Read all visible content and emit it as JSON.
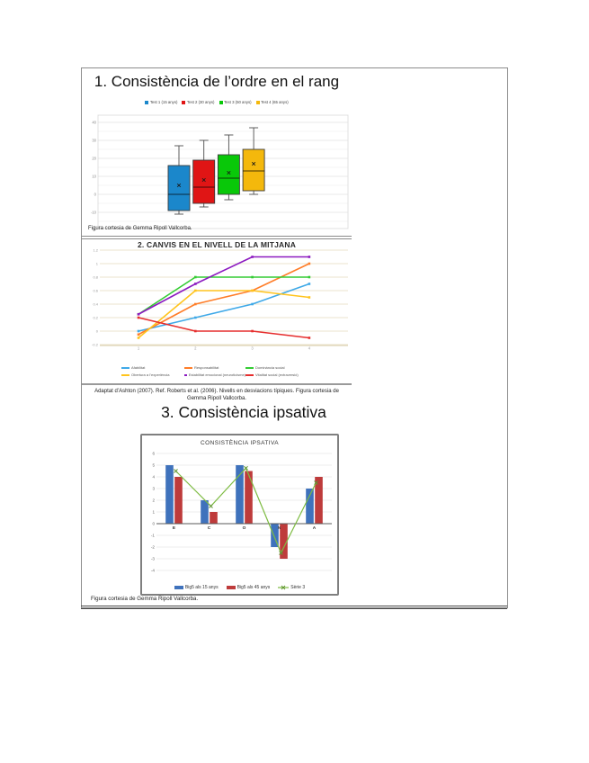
{
  "page": {
    "title1": "1. Consistència de l’ordre en el rang",
    "caption1": "Figura cortesia de Gemma Ripoll Vallcorba.",
    "title2": "2. CANVIS EN EL NIVELL DE LA MITJANA",
    "caption2": "Adaptat d’Ashton (2007). Ref. Roberts et al. (2006). Nivells en desviacions típiques. Figura cortesia de Gemma Ripoll Vallcorba.",
    "title3": "3. Consistència ipsativa",
    "caption3": "Figura cortesia de Gemma Ripoll Vallcorba."
  },
  "chart_data": [
    {
      "type": "boxplot",
      "title": "1. Consistència de l’ordre en el rang",
      "ylim": [
        -19,
        44
      ],
      "yticks": [
        40,
        30,
        20,
        10,
        0,
        -10,
        -20
      ],
      "grid": true,
      "legend_position": "top",
      "series": [
        {
          "name": "Test 1 (15 anys)",
          "color": "#1b87cb",
          "low": -11,
          "q1": -9,
          "median": 0,
          "q3": 16,
          "high": 27,
          "mean": 5
        },
        {
          "name": "Test 2 (30 anys)",
          "color": "#e01515",
          "low": -7,
          "q1": -5,
          "median": 4,
          "q3": 19,
          "high": 30,
          "mean": 8
        },
        {
          "name": "Test 3 (50 anys)",
          "color": "#09c809",
          "low": -3,
          "q1": 0,
          "median": 9,
          "q3": 22,
          "high": 33,
          "mean": 12
        },
        {
          "name": "Test 4 (65 anys)",
          "color": "#f4b80c",
          "low": 0,
          "q1": 2,
          "median": 13,
          "q3": 25,
          "high": 37,
          "mean": 17
        }
      ]
    },
    {
      "type": "line",
      "title": "2. CANVIS EN EL NIVELL DE LA MITJANA",
      "ylim": [
        -0.3,
        1.3
      ],
      "yticks": [
        1.2,
        1,
        0.8,
        0.6,
        0.4,
        0.2,
        0,
        -0.2
      ],
      "x": [
        "1",
        "2",
        "3",
        "4"
      ],
      "grid": true,
      "legend_position": "bottom",
      "series": [
        {
          "name": "Afabilitat",
          "color": "#3fa9e8",
          "values": [
            0,
            0.2,
            0.4,
            0.7
          ]
        },
        {
          "name": "Responsabilitat",
          "color": "#ff7d28",
          "values": [
            -0.05,
            0.4,
            0.6,
            1.0
          ]
        },
        {
          "name": "Dominància social",
          "color": "#33cc33",
          "values": [
            0.25,
            0.8,
            0.8,
            0.8
          ]
        },
        {
          "name": "Obertura a l’experiència",
          "color": "#ffc41e",
          "values": [
            -0.1,
            0.6,
            0.6,
            0.5
          ]
        },
        {
          "name": "Estabilitat emocional (neuroticisme)",
          "color": "#8c1ac0",
          "values": [
            0.25,
            0.7,
            1.1,
            1.1
          ]
        },
        {
          "name": "Vitalitat social (extraversió)",
          "color": "#e62e2e",
          "values": [
            0.2,
            0,
            0,
            -0.1
          ]
        }
      ]
    },
    {
      "type": "bar",
      "title": "CONSISTÈNCIA IPSATIVA",
      "categories": [
        "E",
        "C",
        "O",
        "N",
        "A"
      ],
      "ylim": [
        -4.5,
        6.5
      ],
      "yticks": [
        6,
        5,
        4,
        3,
        2,
        1,
        0,
        -1,
        -2,
        -3,
        -4
      ],
      "grid": true,
      "legend_position": "bottom",
      "series": [
        {
          "name": "Big5 als 15 anys",
          "kind": "bar",
          "color": "#3f72bc",
          "values": [
            5,
            2,
            5,
            -2,
            3
          ]
        },
        {
          "name": "Big5 als 45 anys",
          "kind": "bar",
          "color": "#be3b3b",
          "values": [
            4,
            1,
            4.5,
            -3,
            4
          ]
        },
        {
          "name": "Sèrie 3",
          "kind": "line",
          "color": "#7dbb42",
          "values": [
            4.5,
            1.5,
            4.75,
            -2.5,
            3.5
          ]
        }
      ]
    }
  ]
}
